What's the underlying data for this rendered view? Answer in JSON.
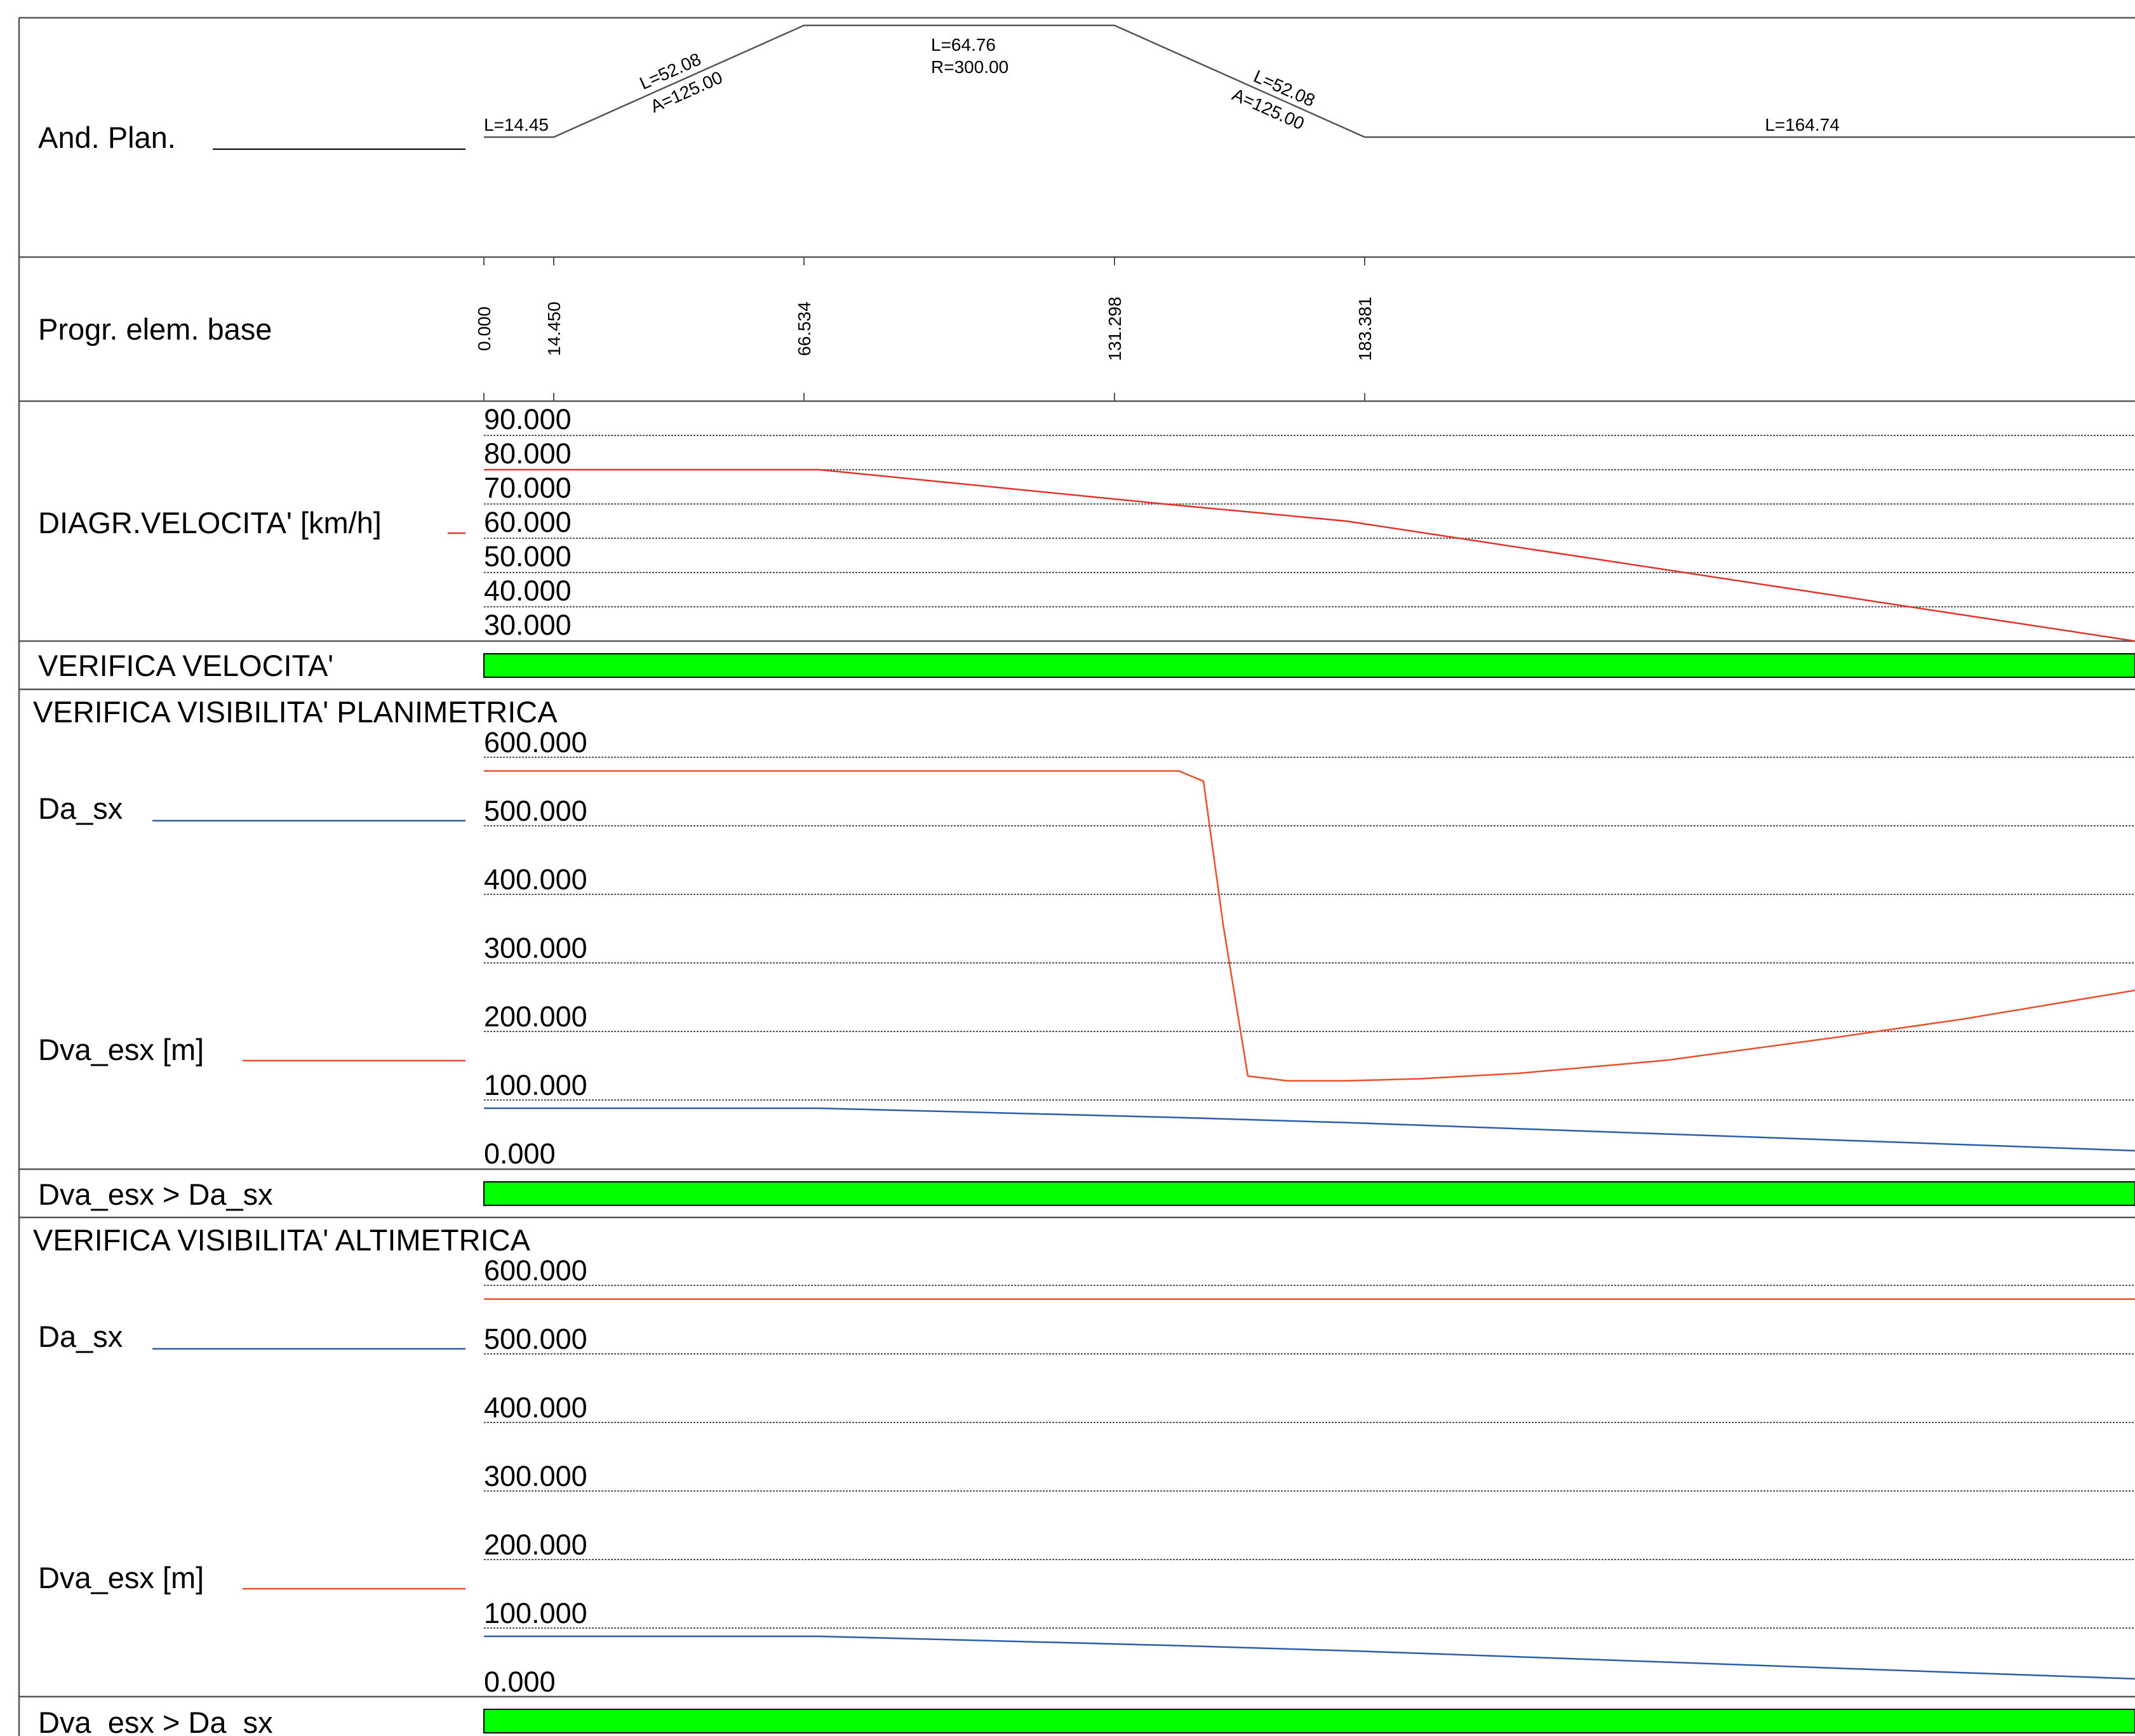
{
  "colors": {
    "speed": "#e2332b",
    "da_sx": "#2a5fa8",
    "dva_esx": "#e8502a",
    "pass": "#00ff00",
    "alignment": "#555555"
  },
  "alignment": {
    "label": "And. Plan.",
    "segments": [
      {
        "kind": "straight",
        "labels": [
          "L=14.45"
        ]
      },
      {
        "kind": "clothoid",
        "labels": [
          "L=52.08",
          "A=125.00"
        ]
      },
      {
        "kind": "arc",
        "labels": [
          "L=64.76",
          "R=300.00"
        ]
      },
      {
        "kind": "clothoid",
        "labels": [
          "L=52.08",
          "A=125.00"
        ]
      },
      {
        "kind": "straight",
        "labels": [
          "L=164.74"
        ]
      }
    ]
  },
  "stations": {
    "label": "Progr. elem. base",
    "values": [
      "0.000",
      "14.450",
      "66.534",
      "131.298",
      "183.381"
    ]
  },
  "chart_data": [
    {
      "type": "line",
      "title": "DIAGR.VELOCITA' [km/h]",
      "ylim": [
        30,
        90
      ],
      "yticks": [
        "90.000",
        "80.000",
        "70.000",
        "60.000",
        "50.000",
        "40.000",
        "30.000"
      ],
      "grid": true,
      "series": [
        {
          "name": "DIAGR.VELOCITA' [km/h]",
          "color": "#e2332b",
          "x": [
            0,
            68,
            138,
            175,
            335
          ],
          "y": [
            80,
            80,
            70,
            65,
            30
          ]
        }
      ]
    },
    {
      "type": "line",
      "title": "VERIFICA VISIBILITA' PLANIMETRICA",
      "ylim": [
        0,
        600
      ],
      "yticks": [
        "600.000",
        "500.000",
        "400.000",
        "300.000",
        "200.000",
        "100.000",
        "0.000"
      ],
      "grid": true,
      "series": [
        {
          "name": "Da_sx",
          "color": "#2a5fa8",
          "x": [
            0,
            68,
            138,
            175,
            335
          ],
          "y": [
            88,
            88,
            75,
            67,
            26
          ]
        },
        {
          "name": "Dva_esx [m]",
          "color": "#e8502a",
          "x": [
            0,
            141,
            146,
            150,
            155,
            163,
            175,
            190,
            210,
            240,
            275,
            300,
            335
          ],
          "y": [
            580,
            580,
            565,
            355,
            135,
            128,
            128,
            131,
            139,
            158,
            192,
            218,
            260
          ]
        }
      ]
    },
    {
      "type": "line",
      "title": "VERIFICA VISIBILITA' ALTIMETRICA",
      "ylim": [
        0,
        600
      ],
      "yticks": [
        "600.000",
        "500.000",
        "400.000",
        "300.000",
        "200.000",
        "100.000",
        "0.000"
      ],
      "grid": true,
      "series": [
        {
          "name": "Da_sx",
          "color": "#2a5fa8",
          "x": [
            0,
            68,
            138,
            175,
            335
          ],
          "y": [
            88,
            88,
            75,
            67,
            26
          ]
        },
        {
          "name": "Dva_esx [m]",
          "color": "#e8502a",
          "x": [
            0,
            335
          ],
          "y": [
            580,
            580
          ]
        }
      ]
    }
  ],
  "checks": [
    {
      "label": "VERIFICA VELOCITA'",
      "passed": 1
    },
    {
      "label": "Dva_esx > Da_sx",
      "passed": 1
    },
    {
      "label": "Dva_esx > Da_sx",
      "passed": 1
    }
  ],
  "legend": {
    "speed_label": "DIAGR.VELOCITA' [km/h]",
    "plan_title": "VERIFICA VISIBILITA' PLANIMETRICA",
    "alt_title": "VERIFICA VISIBILITA' ALTIMETRICA",
    "da_sx": "Da_sx",
    "dva_esx": "Dva_esx [m]"
  }
}
